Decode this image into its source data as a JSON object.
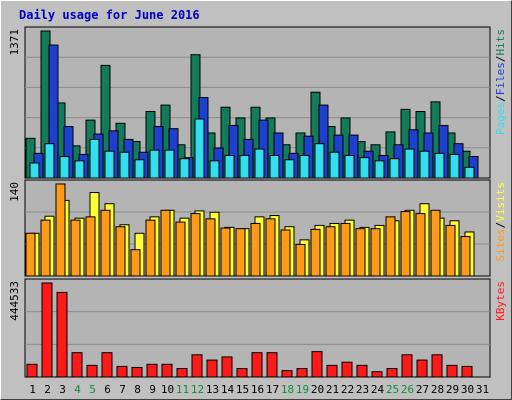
{
  "title": "Daily usage for June 2016",
  "colors": {
    "hits": "#137a5a",
    "files": "#1f3fcf",
    "pages": "#33dfee",
    "visits": "#ffff33",
    "sites": "#ff9a16",
    "kbytes": "#ff1a1a",
    "weekend_label": "#128a40",
    "weekday_label": "#000000",
    "background": "#c0c0c0",
    "plot_background": "#b4b4b4"
  },
  "chart_data": [
    {
      "type": "bar",
      "title": "Daily usage for June 2016",
      "panel": "hits-files-pages",
      "y_max_label": "1371",
      "ylim": [
        0,
        1371
      ],
      "right_labels": [
        "Hits",
        "Files",
        "Pages"
      ],
      "right_colors": [
        "#137a5a",
        "#1f3fcf",
        "#33dfee"
      ],
      "categories": [
        "1",
        "2",
        "3",
        "4",
        "5",
        "6",
        "7",
        "8",
        "9",
        "10",
        "11",
        "12",
        "13",
        "14",
        "15",
        "16",
        "17",
        "18",
        "19",
        "20",
        "21",
        "22",
        "23",
        "24",
        "25",
        "26",
        "27",
        "28",
        "29",
        "30",
        "31"
      ],
      "series": [
        {
          "name": "Hits",
          "values": [
            370,
            1371,
            700,
            300,
            540,
            1050,
            510,
            340,
            620,
            680,
            310,
            1150,
            420,
            660,
            560,
            660,
            560,
            310,
            420,
            800,
            480,
            560,
            340,
            310,
            430,
            640,
            620,
            710,
            420,
            250,
            0
          ]
        },
        {
          "name": "Files",
          "values": [
            230,
            1240,
            480,
            220,
            410,
            440,
            360,
            240,
            480,
            460,
            190,
            750,
            280,
            490,
            360,
            540,
            420,
            230,
            390,
            680,
            400,
            400,
            250,
            210,
            310,
            450,
            420,
            490,
            320,
            200,
            0
          ]
        },
        {
          "name": "Pages",
          "values": [
            140,
            320,
            200,
            160,
            360,
            250,
            240,
            170,
            260,
            260,
            180,
            550,
            160,
            210,
            210,
            270,
            210,
            170,
            210,
            320,
            240,
            210,
            190,
            160,
            180,
            270,
            250,
            230,
            220,
            100,
            0
          ]
        }
      ]
    },
    {
      "type": "bar",
      "panel": "visits-sites",
      "y_max_label": "140",
      "ylim": [
        0,
        140
      ],
      "right_labels": [
        "Visits",
        "Sites"
      ],
      "right_colors": [
        "#ffff33",
        "#ff9a16"
      ],
      "categories": [
        "1",
        "2",
        "3",
        "4",
        "5",
        "6",
        "7",
        "8",
        "9",
        "10",
        "11",
        "12",
        "13",
        "14",
        "15",
        "16",
        "17",
        "18",
        "19",
        "20",
        "21",
        "22",
        "23",
        "24",
        "25",
        "26",
        "27",
        "28",
        "29",
        "30",
        "31"
      ],
      "series": [
        {
          "name": "Visits",
          "values": [
            65,
            91,
            115,
            88,
            127,
            110,
            78,
            65,
            90,
            100,
            88,
            99,
            97,
            74,
            72,
            90,
            92,
            75,
            55,
            77,
            80,
            85,
            74,
            77,
            84,
            100,
            110,
            88,
            84,
            67,
            0
          ]
        },
        {
          "name": "Sites",
          "values": [
            65,
            85,
            140,
            85,
            90,
            100,
            75,
            40,
            85,
            100,
            82,
            95,
            87,
            73,
            72,
            80,
            87,
            70,
            48,
            71,
            75,
            80,
            72,
            72,
            90,
            98,
            95,
            100,
            77,
            60,
            0
          ]
        }
      ]
    },
    {
      "type": "bar",
      "panel": "kbytes",
      "y_max_label": "444533",
      "ylim": [
        0,
        444533
      ],
      "right_labels": [
        "KBytes"
      ],
      "right_colors": [
        "#ff1a1a"
      ],
      "categories": [
        "1",
        "2",
        "3",
        "4",
        "5",
        "6",
        "7",
        "8",
        "9",
        "10",
        "11",
        "12",
        "13",
        "14",
        "15",
        "16",
        "17",
        "18",
        "19",
        "20",
        "21",
        "22",
        "23",
        "24",
        "25",
        "26",
        "27",
        "28",
        "29",
        "30",
        "31"
      ],
      "series": [
        {
          "name": "KBytes",
          "values": [
            60000,
            444533,
            400000,
            115000,
            55000,
            115000,
            50000,
            45000,
            60000,
            60000,
            40000,
            105000,
            80000,
            95000,
            40000,
            115000,
            115000,
            30000,
            40000,
            120000,
            55000,
            70000,
            55000,
            25000,
            40000,
            105000,
            80000,
            105000,
            55000,
            50000,
            0
          ]
        }
      ]
    }
  ],
  "x_labels": [
    {
      "text": "1",
      "weekend": false
    },
    {
      "text": "2",
      "weekend": false
    },
    {
      "text": "3",
      "weekend": false
    },
    {
      "text": "4",
      "weekend": true
    },
    {
      "text": "5",
      "weekend": true
    },
    {
      "text": "6",
      "weekend": false
    },
    {
      "text": "7",
      "weekend": false
    },
    {
      "text": "8",
      "weekend": false
    },
    {
      "text": "9",
      "weekend": false
    },
    {
      "text": "10",
      "weekend": false
    },
    {
      "text": "11",
      "weekend": true
    },
    {
      "text": "12",
      "weekend": true
    },
    {
      "text": "13",
      "weekend": false
    },
    {
      "text": "14",
      "weekend": false
    },
    {
      "text": "15",
      "weekend": false
    },
    {
      "text": "16",
      "weekend": false
    },
    {
      "text": "17",
      "weekend": false
    },
    {
      "text": "18",
      "weekend": true
    },
    {
      "text": "19",
      "weekend": true
    },
    {
      "text": "20",
      "weekend": false
    },
    {
      "text": "21",
      "weekend": false
    },
    {
      "text": "22",
      "weekend": false
    },
    {
      "text": "23",
      "weekend": false
    },
    {
      "text": "24",
      "weekend": false
    },
    {
      "text": "25",
      "weekend": true
    },
    {
      "text": "26",
      "weekend": true
    },
    {
      "text": "27",
      "weekend": false
    },
    {
      "text": "28",
      "weekend": false
    },
    {
      "text": "29",
      "weekend": false
    },
    {
      "text": "30",
      "weekend": false
    },
    {
      "text": "31",
      "weekend": false
    }
  ]
}
